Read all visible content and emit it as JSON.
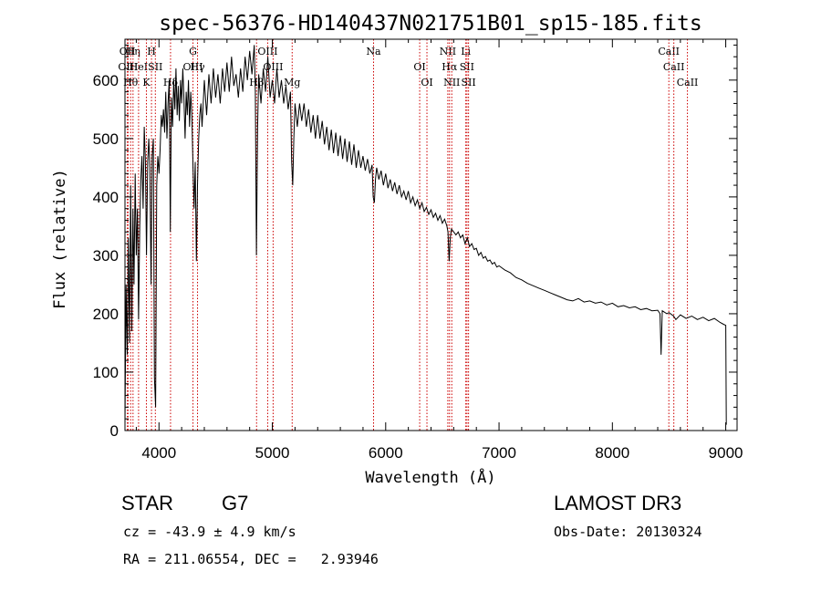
{
  "chart_data": {
    "type": "line",
    "title": "spec-56376-HD140437N021751B01_sp15-185.fits",
    "xlabel": "Wavelength (Å)",
    "ylabel": "Flux (relative)",
    "xlim": [
      3700,
      9100
    ],
    "ylim": [
      0,
      670
    ],
    "xticks": [
      4000,
      5000,
      6000,
      7000,
      8000,
      9000
    ],
    "yticks": [
      0,
      100,
      200,
      300,
      400,
      500,
      600
    ],
    "grid": false,
    "series": [
      {
        "name": "flux",
        "points": [
          [
            3700,
            10
          ],
          [
            3710,
            250
          ],
          [
            3720,
            130
          ],
          [
            3730,
            330
          ],
          [
            3740,
            150
          ],
          [
            3750,
            420
          ],
          [
            3760,
            170
          ],
          [
            3770,
            380
          ],
          [
            3780,
            250
          ],
          [
            3790,
            440
          ],
          [
            3800,
            300
          ],
          [
            3810,
            380
          ],
          [
            3820,
            190
          ],
          [
            3830,
            350
          ],
          [
            3840,
            430
          ],
          [
            3850,
            470
          ],
          [
            3860,
            380
          ],
          [
            3870,
            520
          ],
          [
            3880,
            460
          ],
          [
            3890,
            300
          ],
          [
            3900,
            460
          ],
          [
            3910,
            500
          ],
          [
            3920,
            450
          ],
          [
            3930,
            250
          ],
          [
            3940,
            470
          ],
          [
            3950,
            500
          ],
          [
            3960,
            90
          ],
          [
            3970,
            40
          ],
          [
            3980,
            420
          ],
          [
            3990,
            470
          ],
          [
            4000,
            440
          ],
          [
            4010,
            480
          ],
          [
            4020,
            540
          ],
          [
            4030,
            520
          ],
          [
            4040,
            550
          ],
          [
            4050,
            510
          ],
          [
            4060,
            580
          ],
          [
            4070,
            500
          ],
          [
            4080,
            560
          ],
          [
            4090,
            600
          ],
          [
            4100,
            340
          ],
          [
            4110,
            570
          ],
          [
            4120,
            520
          ],
          [
            4130,
            600
          ],
          [
            4140,
            550
          ],
          [
            4150,
            620
          ],
          [
            4160,
            540
          ],
          [
            4170,
            590
          ],
          [
            4180,
            530
          ],
          [
            4190,
            600
          ],
          [
            4200,
            560
          ],
          [
            4210,
            620
          ],
          [
            4220,
            570
          ],
          [
            4230,
            500
          ],
          [
            4240,
            580
          ],
          [
            4250,
            540
          ],
          [
            4260,
            600
          ],
          [
            4270,
            520
          ],
          [
            4280,
            580
          ],
          [
            4290,
            540
          ],
          [
            4300,
            450
          ],
          [
            4310,
            380
          ],
          [
            4320,
            460
          ],
          [
            4330,
            290
          ],
          [
            4340,
            420
          ],
          [
            4350,
            500
          ],
          [
            4360,
            540
          ],
          [
            4370,
            560
          ],
          [
            4380,
            520
          ],
          [
            4400,
            600
          ],
          [
            4420,
            540
          ],
          [
            4440,
            610
          ],
          [
            4460,
            560
          ],
          [
            4480,
            620
          ],
          [
            4500,
            570
          ],
          [
            4520,
            610
          ],
          [
            4540,
            560
          ],
          [
            4560,
            620
          ],
          [
            4580,
            580
          ],
          [
            4600,
            630
          ],
          [
            4620,
            580
          ],
          [
            4640,
            640
          ],
          [
            4660,
            590
          ],
          [
            4680,
            610
          ],
          [
            4700,
            570
          ],
          [
            4720,
            620
          ],
          [
            4740,
            580
          ],
          [
            4760,
            640
          ],
          [
            4780,
            600
          ],
          [
            4800,
            650
          ],
          [
            4820,
            610
          ],
          [
            4840,
            660
          ],
          [
            4850,
            580
          ],
          [
            4860,
            300
          ],
          [
            4870,
            520
          ],
          [
            4880,
            610
          ],
          [
            4900,
            560
          ],
          [
            4920,
            620
          ],
          [
            4940,
            580
          ],
          [
            4960,
            640
          ],
          [
            4980,
            570
          ],
          [
            5000,
            600
          ],
          [
            5020,
            560
          ],
          [
            5040,
            620
          ],
          [
            5060,
            570
          ],
          [
            5080,
            600
          ],
          [
            5100,
            560
          ],
          [
            5120,
            590
          ],
          [
            5140,
            550
          ],
          [
            5160,
            580
          ],
          [
            5170,
            460
          ],
          [
            5180,
            420
          ],
          [
            5190,
            500
          ],
          [
            5200,
            560
          ],
          [
            5220,
            520
          ],
          [
            5240,
            560
          ],
          [
            5260,
            530
          ],
          [
            5280,
            560
          ],
          [
            5300,
            520
          ],
          [
            5320,
            550
          ],
          [
            5340,
            510
          ],
          [
            5360,
            540
          ],
          [
            5380,
            500
          ],
          [
            5400,
            540
          ],
          [
            5420,
            500
          ],
          [
            5440,
            530
          ],
          [
            5460,
            490
          ],
          [
            5480,
            520
          ],
          [
            5500,
            480
          ],
          [
            5520,
            515
          ],
          [
            5540,
            475
          ],
          [
            5560,
            510
          ],
          [
            5580,
            470
          ],
          [
            5600,
            505
          ],
          [
            5620,
            465
          ],
          [
            5640,
            500
          ],
          [
            5660,
            460
          ],
          [
            5680,
            495
          ],
          [
            5700,
            455
          ],
          [
            5720,
            490
          ],
          [
            5740,
            450
          ],
          [
            5760,
            480
          ],
          [
            5780,
            450
          ],
          [
            5800,
            470
          ],
          [
            5820,
            445
          ],
          [
            5840,
            465
          ],
          [
            5860,
            440
          ],
          [
            5880,
            455
          ],
          [
            5890,
            400
          ],
          [
            5900,
            390
          ],
          [
            5910,
            430
          ],
          [
            5920,
            450
          ],
          [
            5940,
            430
          ],
          [
            5960,
            445
          ],
          [
            5980,
            420
          ],
          [
            6000,
            440
          ],
          [
            6020,
            415
          ],
          [
            6040,
            430
          ],
          [
            6060,
            410
          ],
          [
            6080,
            425
          ],
          [
            6100,
            405
          ],
          [
            6120,
            420
          ],
          [
            6140,
            400
          ],
          [
            6160,
            410
          ],
          [
            6180,
            395
          ],
          [
            6200,
            410
          ],
          [
            6220,
            390
          ],
          [
            6240,
            400
          ],
          [
            6260,
            385
          ],
          [
            6280,
            395
          ],
          [
            6300,
            380
          ],
          [
            6320,
            390
          ],
          [
            6340,
            375
          ],
          [
            6360,
            382
          ],
          [
            6380,
            370
          ],
          [
            6400,
            378
          ],
          [
            6420,
            365
          ],
          [
            6440,
            372
          ],
          [
            6460,
            360
          ],
          [
            6480,
            368
          ],
          [
            6500,
            355
          ],
          [
            6520,
            362
          ],
          [
            6540,
            350
          ],
          [
            6550,
            340
          ],
          [
            6560,
            290
          ],
          [
            6570,
            330
          ],
          [
            6580,
            345
          ],
          [
            6600,
            340
          ],
          [
            6620,
            335
          ],
          [
            6640,
            340
          ],
          [
            6660,
            330
          ],
          [
            6680,
            335
          ],
          [
            6700,
            320
          ],
          [
            6720,
            330
          ],
          [
            6740,
            315
          ],
          [
            6760,
            320
          ],
          [
            6780,
            310
          ],
          [
            6800,
            312
          ],
          [
            6820,
            300
          ],
          [
            6840,
            305
          ],
          [
            6860,
            295
          ],
          [
            6880,
            298
          ],
          [
            6900,
            290
          ],
          [
            6920,
            292
          ],
          [
            6940,
            285
          ],
          [
            6960,
            288
          ],
          [
            6980,
            280
          ],
          [
            7000,
            282
          ],
          [
            7050,
            275
          ],
          [
            7100,
            270
          ],
          [
            7150,
            262
          ],
          [
            7200,
            258
          ],
          [
            7250,
            252
          ],
          [
            7300,
            248
          ],
          [
            7350,
            244
          ],
          [
            7400,
            240
          ],
          [
            7450,
            236
          ],
          [
            7500,
            232
          ],
          [
            7550,
            228
          ],
          [
            7600,
            224
          ],
          [
            7650,
            222
          ],
          [
            7700,
            226
          ],
          [
            7750,
            220
          ],
          [
            7800,
            222
          ],
          [
            7850,
            218
          ],
          [
            7900,
            220
          ],
          [
            7950,
            215
          ],
          [
            8000,
            218
          ],
          [
            8050,
            212
          ],
          [
            8100,
            214
          ],
          [
            8150,
            210
          ],
          [
            8200,
            212
          ],
          [
            8250,
            207
          ],
          [
            8300,
            209
          ],
          [
            8350,
            205
          ],
          [
            8400,
            206
          ],
          [
            8420,
            200
          ],
          [
            8430,
            130
          ],
          [
            8440,
            205
          ],
          [
            8480,
            200
          ],
          [
            8500,
            202
          ],
          [
            8540,
            196
          ],
          [
            8560,
            190
          ],
          [
            8600,
            198
          ],
          [
            8650,
            192
          ],
          [
            8700,
            196
          ],
          [
            8750,
            190
          ],
          [
            8800,
            194
          ],
          [
            8850,
            188
          ],
          [
            8900,
            192
          ],
          [
            8950,
            185
          ],
          [
            8980,
            182
          ],
          [
            9000,
            180
          ],
          [
            9005,
            10
          ]
        ]
      }
    ],
    "lines": [
      {
        "wl": 3721,
        "labels": [
          "OII"
        ]
      },
      {
        "wl": 3727,
        "labels": [
          "OIII"
        ]
      },
      {
        "wl": 3750,
        "labels": [
          "Hθ"
        ]
      },
      {
        "wl": 3771,
        "labels": [
          "Hη"
        ]
      },
      {
        "wl": 3820,
        "labels": [
          "HeI"
        ]
      },
      {
        "wl": 3889,
        "labels": [
          "K"
        ]
      },
      {
        "wl": 3934,
        "labels": [
          "H"
        ]
      },
      {
        "wl": 3968,
        "labels": [
          "SII"
        ]
      },
      {
        "wl": 4102,
        "labels": [
          "Hδ"
        ]
      },
      {
        "wl": 4300,
        "labels": [
          "G",
          "OIII"
        ]
      },
      {
        "wl": 4340,
        "labels": [
          "Hγ"
        ]
      },
      {
        "wl": 4861,
        "labels": [
          "Hβ"
        ]
      },
      {
        "wl": 4959,
        "labels": [
          "OIII"
        ]
      },
      {
        "wl": 5007,
        "labels": [
          "OIII"
        ]
      },
      {
        "wl": 5175,
        "labels": [
          "Mg"
        ]
      },
      {
        "wl": 5893,
        "labels": [
          "Na"
        ]
      },
      {
        "wl": 6300,
        "labels": [
          "OI"
        ]
      },
      {
        "wl": 6364,
        "labels": [
          "OI"
        ]
      },
      {
        "wl": 6548,
        "labels": [
          "NII"
        ]
      },
      {
        "wl": 6563,
        "labels": [
          "Hα"
        ]
      },
      {
        "wl": 6583,
        "labels": [
          "NII"
        ]
      },
      {
        "wl": 6707,
        "labels": [
          "Li"
        ]
      },
      {
        "wl": 6717,
        "labels": [
          "SII"
        ]
      },
      {
        "wl": 6731,
        "labels": [
          "SII"
        ]
      },
      {
        "wl": 8498,
        "labels": [
          "CaII"
        ]
      },
      {
        "wl": 8542,
        "labels": [
          "CaII"
        ]
      },
      {
        "wl": 8662,
        "labels": [
          "CaII"
        ]
      }
    ]
  },
  "info": {
    "class": "STAR",
    "subclass": "G7",
    "survey": "LAMOST DR3",
    "cz": "cz = -43.9 ± 4.9 km/s",
    "obs_date": "Obs-Date: 20130324",
    "coords": "RA = 211.06554, DEC =   2.93946"
  },
  "colors": {
    "line": "#000000",
    "marker": "#cc0000"
  }
}
